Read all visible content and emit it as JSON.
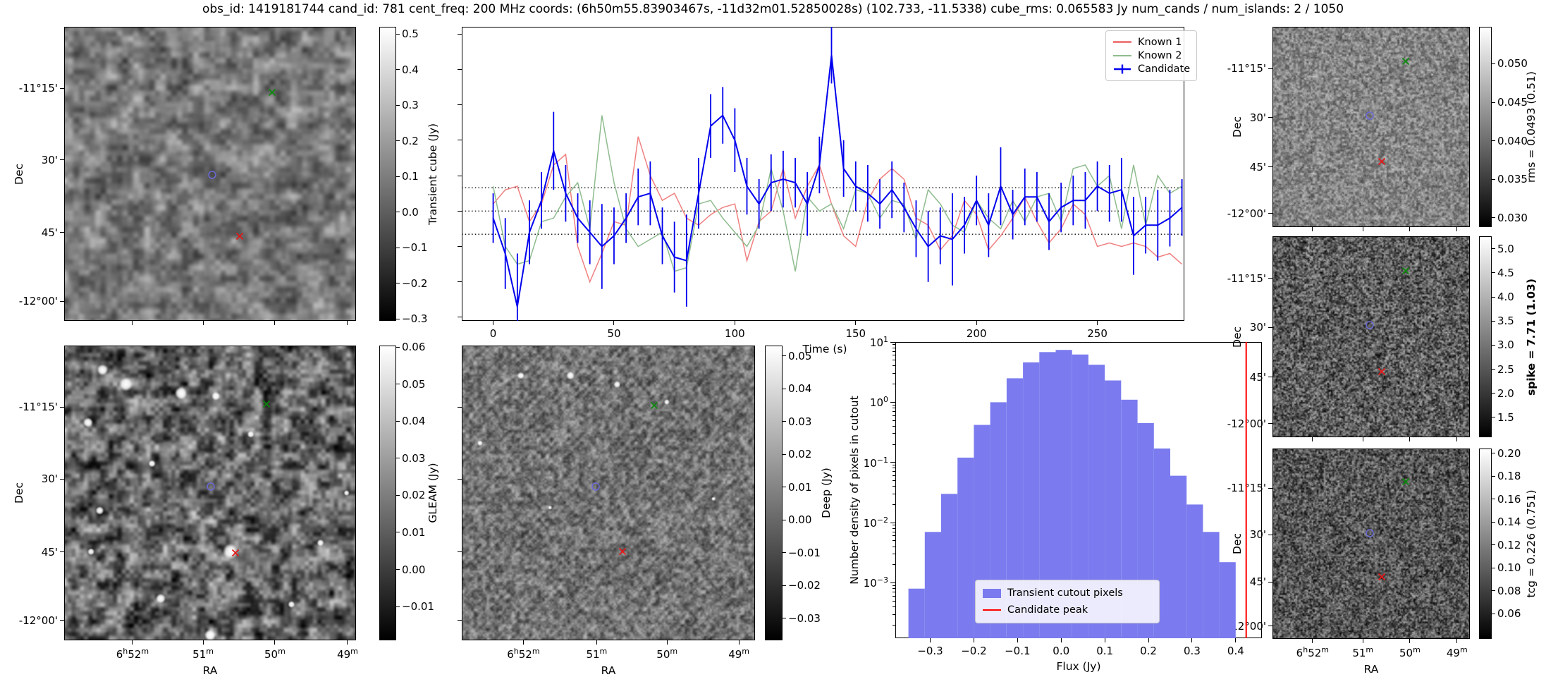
{
  "title": "obs_id: 1419181744 cand_id: 781 cent_freq: 200 MHz coords: (6h50m55.83903467s, -11d32m01.52850028s) (102.733, -11.5338) cube_rms: 0.065583 Jy num_cands / num_islands: 2 / 1050",
  "axes": {
    "ra_label": "RA",
    "dec_label": "Dec",
    "ra_ticks": [
      "6h52m",
      "51m",
      "50m",
      "49m"
    ],
    "dec_ticks": [
      "-11°15'",
      "30'",
      "45'",
      "-12°00'"
    ]
  },
  "colorbars": {
    "transient_cube": {
      "label": "Transient cube (Jy)",
      "ticks": [
        0.5,
        0.4,
        0.3,
        0.2,
        0.1,
        0.0,
        -0.1,
        -0.2,
        -0.3
      ],
      "decimals": 1,
      "vmin": -0.305,
      "vmax": 0.52
    },
    "gleam": {
      "label": "GLEAM (Jy)",
      "ticks": [
        0.06,
        0.05,
        0.04,
        0.03,
        0.02,
        0.01,
        0.0,
        -0.01
      ],
      "decimals": 2,
      "vmin": -0.0191,
      "vmax": 0.0604
    },
    "deep": {
      "label": "Deep (Jy)",
      "ticks": [
        0.05,
        0.04,
        0.03,
        0.02,
        0.01,
        0.0,
        -0.01,
        -0.02,
        -0.03
      ],
      "decimals": 2,
      "vmin": -0.0367,
      "vmax": 0.0532
    },
    "rms": {
      "label": "rms = 0.0493 (0.51)",
      "bold": false,
      "ticks": [
        0.05,
        0.045,
        0.04,
        0.035,
        0.03
      ],
      "decimals": 3,
      "vmin": 0.0288,
      "vmax": 0.0548
    },
    "spike": {
      "label": "spike = 7.71 (1.03)",
      "bold": true,
      "ticks": [
        5.0,
        4.5,
        4.0,
        3.5,
        3.0,
        2.5,
        2.0,
        1.5
      ],
      "decimals": 1,
      "vmin": 1.09,
      "vmax": 5.26
    },
    "tcg": {
      "label": "tcg = 0.226 (0.751)",
      "bold": false,
      "ticks": [
        0.2,
        0.18,
        0.16,
        0.14,
        0.12,
        0.1,
        0.08,
        0.06
      ],
      "decimals": 2,
      "vmin": 0.038,
      "vmax": 0.204
    }
  },
  "markers": {
    "candidate": "blue-circle",
    "known1": "red-x",
    "known2": "green-x"
  },
  "chart_data": [
    {
      "id": "light_curve",
      "type": "line",
      "xlabel": "Time (s)",
      "xlim": [
        -13,
        286
      ],
      "ylim": [
        -0.31,
        0.52
      ],
      "x_ticks": [
        0,
        50,
        100,
        150,
        200,
        250
      ],
      "dotted_levels": [
        0.0656,
        0.0,
        -0.0656
      ],
      "legend_position": "upper right",
      "x": [
        0,
        5,
        10,
        15,
        20,
        25,
        30,
        35,
        40,
        45,
        50,
        55,
        60,
        65,
        70,
        75,
        80,
        85,
        90,
        95,
        100,
        105,
        110,
        115,
        120,
        125,
        130,
        135,
        140,
        145,
        150,
        155,
        160,
        165,
        170,
        175,
        180,
        185,
        190,
        195,
        200,
        205,
        210,
        215,
        220,
        225,
        230,
        235,
        240,
        245,
        250,
        255,
        260,
        265,
        270,
        275,
        280,
        285
      ],
      "series": [
        {
          "name": "Known 1",
          "color": "#f08080",
          "values": [
            0.02,
            0.06,
            0.07,
            -0.03,
            0.02,
            0.13,
            0.16,
            -0.1,
            -0.2,
            -0.12,
            -0.03,
            -0.04,
            0.21,
            0.1,
            0.03,
            0.05,
            -0.02,
            -0.04,
            -0.01,
            0.01,
            0.02,
            -0.14,
            -0.03,
            0.0,
            0.12,
            -0.02,
            0.07,
            0.13,
            0.02,
            -0.07,
            -0.1,
            0.03,
            0.09,
            0.12,
            0.09,
            -0.02,
            -0.04,
            -0.11,
            -0.07,
            0.03,
            -0.01,
            -0.11,
            -0.07,
            -0.02,
            0.04,
            -0.03,
            -0.09,
            -0.05,
            0.02,
            -0.01,
            -0.1,
            -0.09,
            -0.1,
            -0.09,
            -0.1,
            -0.13,
            -0.12,
            -0.15
          ]
        },
        {
          "name": "Known 2",
          "color": "#8fbc8f",
          "values": [
            0.07,
            -0.1,
            -0.15,
            -0.14,
            -0.03,
            -0.02,
            0.04,
            0.08,
            -0.05,
            0.27,
            0.08,
            -0.05,
            -0.1,
            -0.08,
            -0.06,
            -0.17,
            -0.16,
            0.02,
            0.03,
            -0.02,
            -0.06,
            -0.1,
            -0.04,
            0.12,
            0.0,
            -0.17,
            0.04,
            0.0,
            0.02,
            -0.05,
            0.06,
            0.05,
            -0.02,
            0.03,
            0.02,
            -0.08,
            0.06,
            0.02,
            -0.04,
            -0.06,
            0.03,
            -0.02,
            -0.05,
            0.03,
            -0.03,
            0.04,
            0.05,
            -0.03,
            0.12,
            0.13,
            0.07,
            0.1,
            -0.05,
            0.13,
            -0.04,
            0.1,
            0.05,
            0.07
          ]
        },
        {
          "name": "Candidate",
          "color": "#0000ee",
          "values": [
            -0.02,
            -0.12,
            -0.27,
            -0.06,
            0.03,
            0.17,
            0.05,
            -0.02,
            -0.06,
            -0.1,
            -0.07,
            -0.02,
            0.04,
            0.05,
            -0.07,
            -0.13,
            -0.14,
            0.05,
            0.24,
            0.27,
            0.2,
            0.07,
            0.02,
            0.08,
            0.09,
            0.08,
            0.02,
            0.13,
            0.44,
            0.12,
            0.07,
            0.05,
            0.02,
            0.06,
            0.01,
            -0.05,
            -0.1,
            -0.07,
            -0.08,
            -0.04,
            0.03,
            -0.04,
            0.07,
            -0.01,
            0.04,
            0.04,
            -0.03,
            0.01,
            0.03,
            0.03,
            0.07,
            0.05,
            0.06,
            -0.07,
            -0.04,
            -0.04,
            -0.02,
            0.01
          ],
          "errors": [
            0.07,
            0.1,
            0.15,
            0.09,
            0.08,
            0.11,
            0.08,
            0.07,
            0.09,
            0.12,
            0.08,
            0.07,
            0.08,
            0.09,
            0.08,
            0.1,
            0.13,
            0.1,
            0.09,
            0.08,
            0.09,
            0.08,
            0.07,
            0.08,
            0.08,
            0.07,
            0.09,
            0.08,
            0.08,
            0.08,
            0.07,
            0.08,
            0.07,
            0.08,
            0.07,
            0.08,
            0.1,
            0.08,
            0.13,
            0.08,
            0.07,
            0.09,
            0.11,
            0.07,
            0.08,
            0.07,
            0.08,
            0.07,
            0.07,
            0.08,
            0.07,
            0.08,
            0.09,
            0.11,
            0.08,
            0.1,
            0.08,
            0.08
          ]
        }
      ]
    },
    {
      "id": "flux_histogram",
      "type": "bar",
      "xlabel": "Flux (Jy)",
      "ylabel": "Number density of pixels in cutout",
      "yscale": "log",
      "xlim": [
        -0.38,
        0.46
      ],
      "ylim": [
        0.00012,
        10
      ],
      "x_ticks": [
        -0.3,
        -0.2,
        -0.1,
        0.0,
        0.1,
        0.2,
        0.3,
        0.4
      ],
      "y_tick_exponents": [
        1,
        0,
        -1,
        -2,
        -3
      ],
      "bin_start": -0.35,
      "bin_width": 0.0375,
      "densities": [
        0.0008,
        0.007,
        0.03,
        0.12,
        0.42,
        1.0,
        2.5,
        4.6,
        6.8,
        7.4,
        6.2,
        4.2,
        2.3,
        1.1,
        0.45,
        0.17,
        0.06,
        0.02,
        0.007,
        0.0022
      ],
      "candidate_peak": 0.424,
      "bar_color": "#7b7bef",
      "peak_color": "#ff0000",
      "legend": [
        "Transient cutout pixels",
        "Candidate peak"
      ]
    }
  ]
}
